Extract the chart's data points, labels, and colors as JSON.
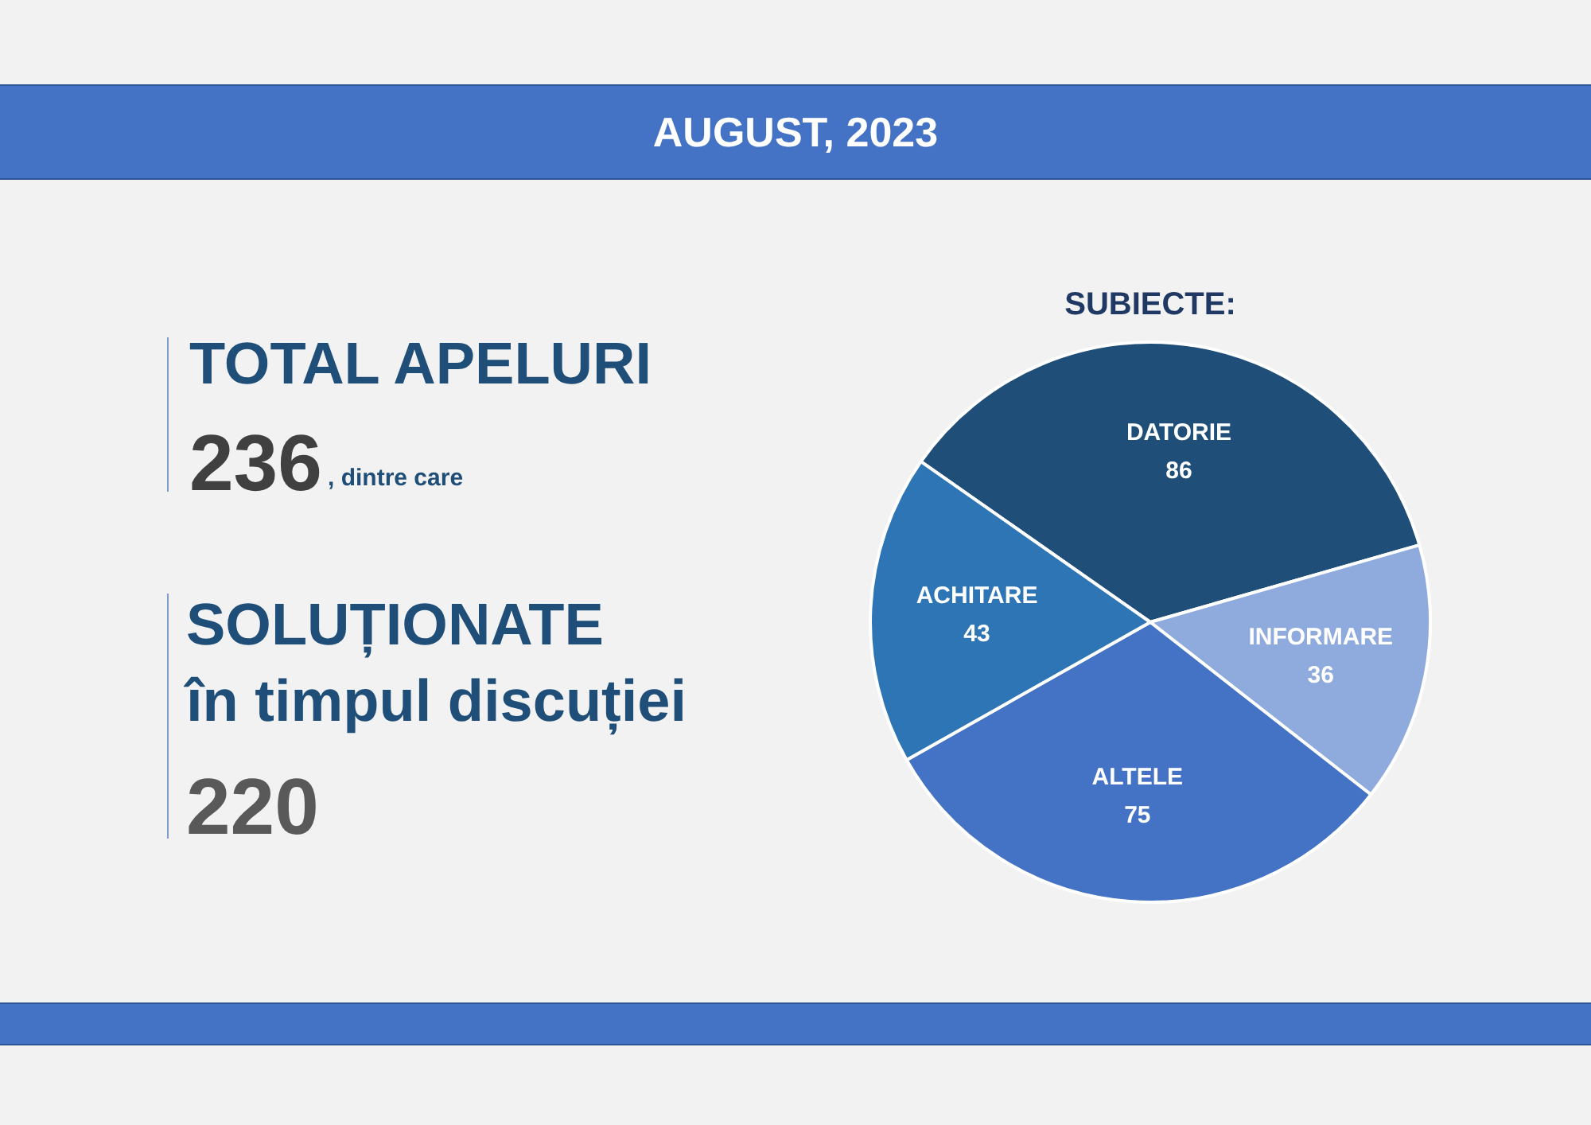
{
  "chart_data": [
    {
      "type": "other",
      "title": "AUGUST, 2023",
      "annotations": [
        "TOTAL APELURI",
        "236",
        ", dintre care",
        "SOLUȚIONATE",
        "în timpul discuției",
        "220"
      ]
    },
    {
      "type": "pie",
      "title": "SUBIECTE:",
      "categories": [
        "DATORIE",
        "INFORMARE",
        "ALTELE",
        "ACHITARE"
      ],
      "values": [
        86,
        36,
        75,
        43
      ],
      "colors": [
        "#1f4e79",
        "#8faadc",
        "#4472c4",
        "#2e75b6"
      ],
      "data_labels": true,
      "legend": false
    }
  ]
}
